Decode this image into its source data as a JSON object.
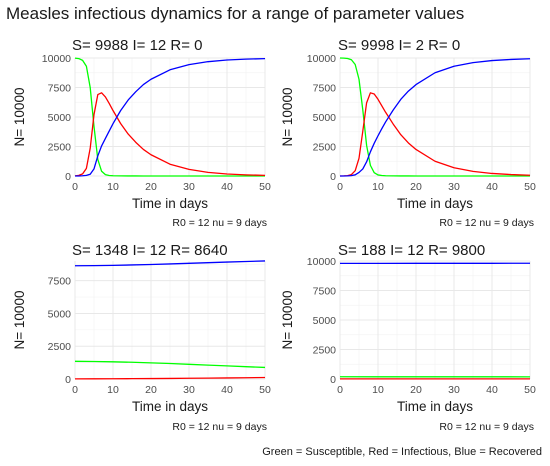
{
  "figure": {
    "title": "Measles infectious dynamics for a range of parameter values",
    "caption": "Green = Susceptible, Red = Infectious, Blue = Recovered"
  },
  "chart_data": [
    {
      "type": "line",
      "title": "S= 9988 I= 12 R= 0",
      "xlabel": "Time in days",
      "ylabel": "N= 10000",
      "caption": "R0 = 12 nu = 9 days",
      "xlim": [
        0,
        50
      ],
      "ylim": [
        0,
        10000
      ],
      "xticks": [
        "0",
        "10",
        "20",
        "30",
        "40",
        "50"
      ],
      "yticks": [
        "0",
        "2500",
        "5000",
        "7500",
        "10000"
      ],
      "x": [
        0,
        1,
        2,
        3,
        4,
        5,
        6,
        7,
        8,
        9,
        10,
        12,
        14,
        16,
        18,
        20,
        25,
        30,
        35,
        40,
        45,
        50
      ],
      "series": [
        {
          "color": "#00FF00",
          "values": [
            9988,
            9950,
            9800,
            9300,
            7500,
            4200,
            1400,
            400,
            120,
            40,
            20,
            10,
            5,
            3,
            2,
            2,
            1,
            1,
            1,
            1,
            1,
            1
          ]
        },
        {
          "color": "#FF0000",
          "values": [
            12,
            50,
            180,
            650,
            2350,
            5200,
            6900,
            7050,
            6700,
            6150,
            5550,
            4450,
            3550,
            2850,
            2250,
            1800,
            1000,
            560,
            310,
            170,
            95,
            55
          ]
        },
        {
          "color": "#0000FF",
          "values": [
            0,
            0,
            20,
            50,
            150,
            600,
            1700,
            2550,
            3180,
            3810,
            4430,
            5540,
            6445,
            7147,
            7748,
            8198,
            8999,
            9439,
            9689,
            9829,
            9904,
            9944
          ]
        }
      ]
    },
    {
      "type": "line",
      "title": "S= 9998 I= 2 R= 0",
      "xlabel": "Time in days",
      "ylabel": "N= 10000",
      "caption": "R0 = 12 nu = 9 days",
      "xlim": [
        0,
        50
      ],
      "ylim": [
        0,
        10000
      ],
      "xticks": [
        "0",
        "10",
        "20",
        "30",
        "40",
        "50"
      ],
      "yticks": [
        "0",
        "2500",
        "5000",
        "7500",
        "10000"
      ],
      "x": [
        0,
        1,
        2,
        3,
        4,
        5,
        6,
        7,
        8,
        9,
        10,
        11,
        12,
        14,
        16,
        18,
        20,
        25,
        30,
        35,
        40,
        45,
        50
      ],
      "series": [
        {
          "color": "#00FF00",
          "values": [
            9998,
            9990,
            9960,
            9850,
            9450,
            8200,
            5600,
            2600,
            900,
            280,
            90,
            40,
            20,
            8,
            4,
            3,
            2,
            1,
            1,
            1,
            1,
            1,
            1
          ]
        },
        {
          "color": "#FF0000",
          "values": [
            2,
            8,
            30,
            120,
            450,
            1500,
            3800,
            6200,
            7050,
            6950,
            6500,
            5950,
            5400,
            4400,
            3500,
            2800,
            2250,
            1250,
            700,
            390,
            215,
            120,
            65
          ]
        },
        {
          "color": "#0000FF",
          "values": [
            0,
            2,
            10,
            30,
            100,
            300,
            600,
            1200,
            2050,
            2770,
            3410,
            4010,
            4580,
            5592,
            6496,
            7197,
            7748,
            8749,
            9299,
            9609,
            9784,
            9879,
            9934
          ]
        }
      ]
    },
    {
      "type": "line",
      "title": "S= 1348 I= 12 R= 8640",
      "xlabel": "Time in days",
      "ylabel": "N= 10000",
      "caption": "R0 = 12 nu = 9 days",
      "xlim": [
        0,
        50
      ],
      "ylim": [
        0,
        9000
      ],
      "xticks": [
        "0",
        "10",
        "20",
        "30",
        "40",
        "50"
      ],
      "yticks": [
        "0",
        "2500",
        "5000",
        "7500"
      ],
      "x": [
        0,
        5,
        10,
        15,
        20,
        25,
        30,
        35,
        40,
        45,
        50
      ],
      "series": [
        {
          "color": "#00FF00",
          "values": [
            1348,
            1335,
            1310,
            1275,
            1230,
            1180,
            1120,
            1060,
            1000,
            940,
            880
          ]
        },
        {
          "color": "#FF0000",
          "values": [
            12,
            16,
            21,
            27,
            35,
            44,
            55,
            68,
            82,
            98,
            115
          ]
        },
        {
          "color": "#0000FF",
          "values": [
            8640,
            8649,
            8669,
            8698,
            8735,
            8776,
            8825,
            8872,
            8918,
            8962,
            9005
          ]
        }
      ]
    },
    {
      "type": "line",
      "title": "S= 188 I= 12 R= 9800",
      "xlabel": "Time in days",
      "ylabel": "N= 10000",
      "caption": "R0 = 12 nu = 9 days",
      "xlim": [
        0,
        50
      ],
      "ylim": [
        0,
        10000
      ],
      "xticks": [
        "0",
        "10",
        "20",
        "30",
        "40",
        "50"
      ],
      "yticks": [
        "0",
        "2500",
        "5000",
        "7500",
        "10000"
      ],
      "x": [
        0,
        10,
        20,
        30,
        40,
        50
      ],
      "series": [
        {
          "color": "#00FF00",
          "values": [
            188,
            187,
            186,
            185,
            184,
            183
          ]
        },
        {
          "color": "#FF0000",
          "values": [
            12,
            12,
            11,
            11,
            10,
            10
          ]
        },
        {
          "color": "#0000FF",
          "values": [
            9800,
            9801,
            9803,
            9804,
            9806,
            9807
          ]
        }
      ]
    }
  ]
}
